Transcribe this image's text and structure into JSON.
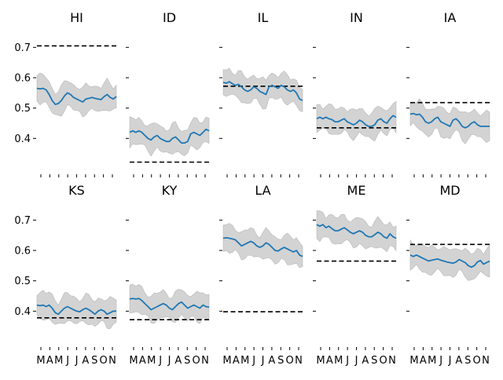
{
  "chart_data": {
    "type": "line",
    "layout": "small-multiples",
    "ylim": [
      0.3,
      0.75
    ],
    "yticks": [
      0.4,
      0.5,
      0.6,
      0.7
    ],
    "ytick_labels": [
      "0.4",
      "0.5",
      "0.6",
      "0.7"
    ],
    "xtick_labels": [
      "M",
      "A",
      "M",
      "J",
      "J",
      "A",
      "S",
      "O",
      "N"
    ],
    "band_color": "#d3d3d3",
    "line_color": "#1f77b4",
    "reference_color": "#000000",
    "panels": [
      {
        "title": "HI",
        "reference": 0.705,
        "values": [
          0.565,
          0.563,
          0.565,
          0.56,
          0.545,
          0.525,
          0.512,
          0.515,
          0.525,
          0.54,
          0.55,
          0.545,
          0.535,
          0.53,
          0.525,
          0.52,
          0.53,
          0.532,
          0.535,
          0.532,
          0.53,
          0.528,
          0.538,
          0.545,
          0.535,
          0.53,
          0.538
        ]
      },
      {
        "title": "ID",
        "reference": 0.322,
        "values": [
          0.42,
          0.425,
          0.42,
          0.425,
          0.42,
          0.41,
          0.4,
          0.395,
          0.405,
          0.41,
          0.4,
          0.395,
          0.39,
          0.39,
          0.4,
          0.405,
          0.395,
          0.385,
          0.385,
          0.39,
          0.415,
          0.42,
          0.415,
          0.41,
          0.42,
          0.43,
          0.425
        ]
      },
      {
        "title": "IL",
        "reference": 0.572,
        "values": [
          0.585,
          0.582,
          0.587,
          0.58,
          0.575,
          0.578,
          0.57,
          0.56,
          0.555,
          0.56,
          0.57,
          0.565,
          0.555,
          0.55,
          0.545,
          0.57,
          0.575,
          0.57,
          0.565,
          0.575,
          0.57,
          0.56,
          0.555,
          0.56,
          0.55,
          0.53,
          0.525
        ]
      },
      {
        "title": "IN",
        "reference": 0.435,
        "values": [
          0.465,
          0.47,
          0.465,
          0.47,
          0.465,
          0.462,
          0.455,
          0.455,
          0.46,
          0.465,
          0.455,
          0.45,
          0.445,
          0.45,
          0.46,
          0.455,
          0.445,
          0.44,
          0.44,
          0.445,
          0.46,
          0.465,
          0.455,
          0.45,
          0.465,
          0.475,
          0.47
        ]
      },
      {
        "title": "IA",
        "reference": 0.518,
        "values": [
          0.48,
          0.482,
          0.478,
          0.48,
          0.47,
          0.455,
          0.45,
          0.455,
          0.465,
          0.47,
          0.455,
          0.45,
          0.445,
          0.44,
          0.46,
          0.465,
          0.455,
          0.44,
          0.435,
          0.44,
          0.45,
          0.455,
          0.445,
          0.44,
          0.44,
          0.44,
          0.44
        ]
      },
      {
        "title": "KS",
        "reference": 0.378,
        "values": [
          0.42,
          0.418,
          0.42,
          0.415,
          0.42,
          0.41,
          0.395,
          0.39,
          0.4,
          0.41,
          0.415,
          0.41,
          0.405,
          0.4,
          0.398,
          0.405,
          0.41,
          0.405,
          0.398,
          0.39,
          0.4,
          0.405,
          0.4,
          0.39,
          0.395,
          0.4,
          0.4
        ]
      },
      {
        "title": "KY",
        "reference": 0.372,
        "values": [
          0.44,
          0.442,
          0.44,
          0.442,
          0.435,
          0.425,
          0.415,
          0.405,
          0.41,
          0.415,
          0.42,
          0.425,
          0.42,
          0.41,
          0.405,
          0.415,
          0.425,
          0.43,
          0.42,
          0.41,
          0.415,
          0.42,
          0.415,
          0.41,
          0.42,
          0.415,
          0.413
        ]
      },
      {
        "title": "LA",
        "reference": 0.398,
        "values": [
          0.64,
          0.642,
          0.64,
          0.638,
          0.635,
          0.625,
          0.615,
          0.62,
          0.625,
          0.63,
          0.625,
          0.615,
          0.61,
          0.615,
          0.625,
          0.62,
          0.61,
          0.6,
          0.598,
          0.605,
          0.61,
          0.605,
          0.6,
          0.595,
          0.6,
          0.585,
          0.58
        ]
      },
      {
        "title": "ME",
        "reference": 0.565,
        "values": [
          0.685,
          0.68,
          0.685,
          0.675,
          0.68,
          0.672,
          0.665,
          0.665,
          0.67,
          0.675,
          0.668,
          0.66,
          0.655,
          0.66,
          0.665,
          0.66,
          0.65,
          0.645,
          0.645,
          0.652,
          0.66,
          0.655,
          0.645,
          0.64,
          0.655,
          0.645,
          0.64
        ]
      },
      {
        "title": "MD",
        "reference": 0.62,
        "values": [
          0.585,
          0.58,
          0.585,
          0.58,
          0.575,
          0.57,
          0.565,
          0.568,
          0.57,
          0.572,
          0.568,
          0.565,
          0.562,
          0.56,
          0.558,
          0.562,
          0.57,
          0.565,
          0.56,
          0.55,
          0.545,
          0.55,
          0.562,
          0.567,
          0.555,
          0.56,
          0.565
        ]
      }
    ]
  }
}
